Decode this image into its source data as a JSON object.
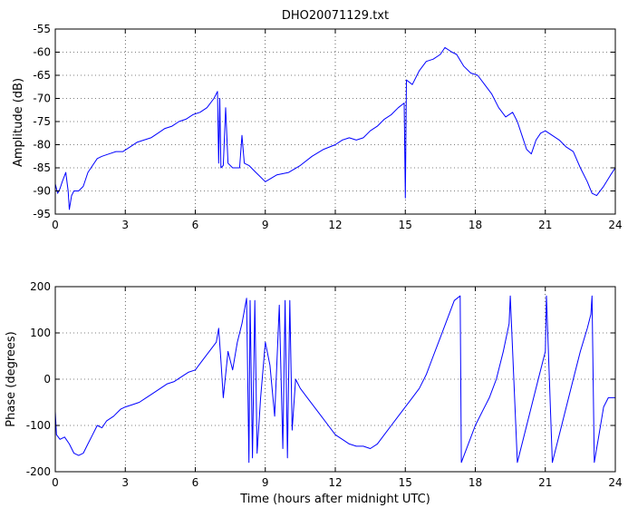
{
  "figure": {
    "background": "#ffffff",
    "line_color": "#0000ff"
  },
  "chart_data": [
    {
      "type": "line",
      "title": "DHO20071129.txt",
      "xlabel": "",
      "ylabel": "Amplitude (dB)",
      "xlim": [
        0,
        24
      ],
      "ylim": [
        -95,
        -55
      ],
      "xticks": [
        0,
        3,
        6,
        9,
        12,
        15,
        18,
        21,
        24
      ],
      "yticks": [
        -95,
        -90,
        -85,
        -80,
        -75,
        -70,
        -65,
        -60,
        -55
      ],
      "grid": "dotted",
      "series": [
        {
          "color": "#0000ff",
          "x": [
            0,
            0.1,
            0.2,
            0.3,
            0.45,
            0.55,
            0.6,
            0.7,
            0.8,
            1.0,
            1.2,
            1.4,
            1.6,
            1.8,
            2.0,
            2.3,
            2.6,
            2.9,
            3.2,
            3.5,
            3.8,
            4.1,
            4.4,
            4.7,
            5.0,
            5.3,
            5.6,
            5.9,
            6.2,
            6.5,
            6.8,
            6.95,
            7.0,
            7.05,
            7.1,
            7.2,
            7.3,
            7.4,
            7.6,
            7.9,
            8.0,
            8.1,
            8.3,
            8.6,
            9.0,
            9.5,
            10.0,
            10.5,
            11.0,
            11.5,
            12.0,
            12.3,
            12.6,
            12.9,
            13.2,
            13.5,
            13.8,
            14.1,
            14.4,
            14.7,
            14.95,
            15.0,
            15.05,
            15.3,
            15.6,
            15.9,
            16.2,
            16.5,
            16.7,
            17.0,
            17.2,
            17.5,
            17.8,
            18.1,
            18.4,
            18.7,
            19.0,
            19.3,
            19.6,
            19.8,
            20.0,
            20.2,
            20.4,
            20.6,
            20.8,
            21.0,
            21.3,
            21.6,
            21.9,
            22.2,
            22.5,
            22.8,
            23.0,
            23.2,
            23.5,
            23.8,
            24.0
          ],
          "y": [
            -88.5,
            -90.5,
            -89.5,
            -88,
            -86,
            -90,
            -94,
            -91,
            -90,
            -90,
            -89,
            -86,
            -84.5,
            -83,
            -82.5,
            -82,
            -81.5,
            -81.5,
            -80.5,
            -79.5,
            -79,
            -78.5,
            -77.5,
            -76.5,
            -76,
            -75,
            -74.5,
            -73.5,
            -73,
            -72,
            -70,
            -68.5,
            -84,
            -70,
            -85,
            -84.5,
            -72,
            -84,
            -85,
            -85,
            -78,
            -84,
            -84.5,
            -86,
            -88,
            -86.5,
            -86,
            -84.5,
            -82.5,
            -81,
            -80,
            -79,
            -78.5,
            -79,
            -78.5,
            -77,
            -76,
            -74.5,
            -73.5,
            -72,
            -71,
            -91.5,
            -66,
            -67,
            -64,
            -62,
            -61.5,
            -60.5,
            -59,
            -60,
            -60.5,
            -63,
            -64.5,
            -65,
            -67,
            -69,
            -72,
            -74,
            -73,
            -75,
            -78,
            -81,
            -82,
            -79,
            -77.5,
            -77,
            -78,
            -79,
            -80.5,
            -81.5,
            -85,
            -88,
            -90.5,
            -91,
            -89,
            -86.5,
            -85
          ]
        }
      ]
    },
    {
      "type": "line",
      "title": "",
      "xlabel": "Time (hours after midnight UTC)",
      "ylabel": "Phase (degrees)",
      "xlim": [
        0,
        24
      ],
      "ylim": [
        -200,
        200
      ],
      "xticks": [
        0,
        3,
        6,
        9,
        12,
        15,
        18,
        21,
        24
      ],
      "yticks": [
        -200,
        -100,
        0,
        100,
        200
      ],
      "grid": "dotted",
      "series": [
        {
          "color": "#0000ff",
          "x": [
            0,
            0.05,
            0.2,
            0.4,
            0.6,
            0.8,
            1.0,
            1.2,
            1.4,
            1.6,
            1.8,
            2.0,
            2.2,
            2.5,
            2.8,
            3.0,
            3.3,
            3.6,
            3.9,
            4.2,
            4.5,
            4.8,
            5.1,
            5.4,
            5.7,
            6.0,
            6.3,
            6.6,
            6.9,
            7.0,
            7.1,
            7.2,
            7.4,
            7.6,
            7.8,
            8.0,
            8.2,
            8.3,
            8.35,
            8.45,
            8.55,
            8.65,
            8.8,
            9.0,
            9.2,
            9.4,
            9.6,
            9.75,
            9.85,
            9.95,
            10.05,
            10.15,
            10.3,
            10.5,
            10.8,
            11.1,
            11.4,
            11.7,
            12.0,
            12.3,
            12.6,
            12.9,
            13.2,
            13.5,
            13.8,
            14.1,
            14.4,
            14.7,
            15.0,
            15.3,
            15.6,
            15.9,
            16.2,
            16.5,
            16.8,
            17.1,
            17.35,
            17.4,
            17.7,
            18.0,
            18.3,
            18.6,
            18.9,
            19.2,
            19.45,
            19.5,
            19.8,
            20.1,
            20.4,
            20.7,
            21.0,
            21.05,
            21.3,
            21.6,
            21.9,
            22.2,
            22.5,
            22.8,
            22.95,
            23.0,
            23.1,
            23.3,
            23.5,
            23.7,
            24.0
          ],
          "y": [
            -70,
            -120,
            -130,
            -125,
            -140,
            -160,
            -165,
            -160,
            -140,
            -120,
            -100,
            -105,
            -90,
            -80,
            -65,
            -60,
            -55,
            -50,
            -40,
            -30,
            -20,
            -10,
            -5,
            5,
            15,
            20,
            40,
            60,
            80,
            110,
            40,
            -40,
            60,
            20,
            80,
            120,
            175,
            -180,
            170,
            -170,
            170,
            -160,
            -40,
            80,
            30,
            -80,
            160,
            -150,
            170,
            -170,
            170,
            -110,
            0,
            -20,
            -40,
            -60,
            -80,
            -100,
            -120,
            -130,
            -140,
            -145,
            -145,
            -150,
            -140,
            -120,
            -100,
            -80,
            -60,
            -40,
            -20,
            10,
            50,
            90,
            130,
            170,
            180,
            -180,
            -140,
            -100,
            -70,
            -40,
            0,
            60,
            120,
            180,
            -180,
            -120,
            -60,
            0,
            60,
            180,
            -180,
            -120,
            -60,
            0,
            60,
            110,
            140,
            180,
            -180,
            -120,
            -60,
            -40,
            -40
          ]
        }
      ]
    }
  ]
}
